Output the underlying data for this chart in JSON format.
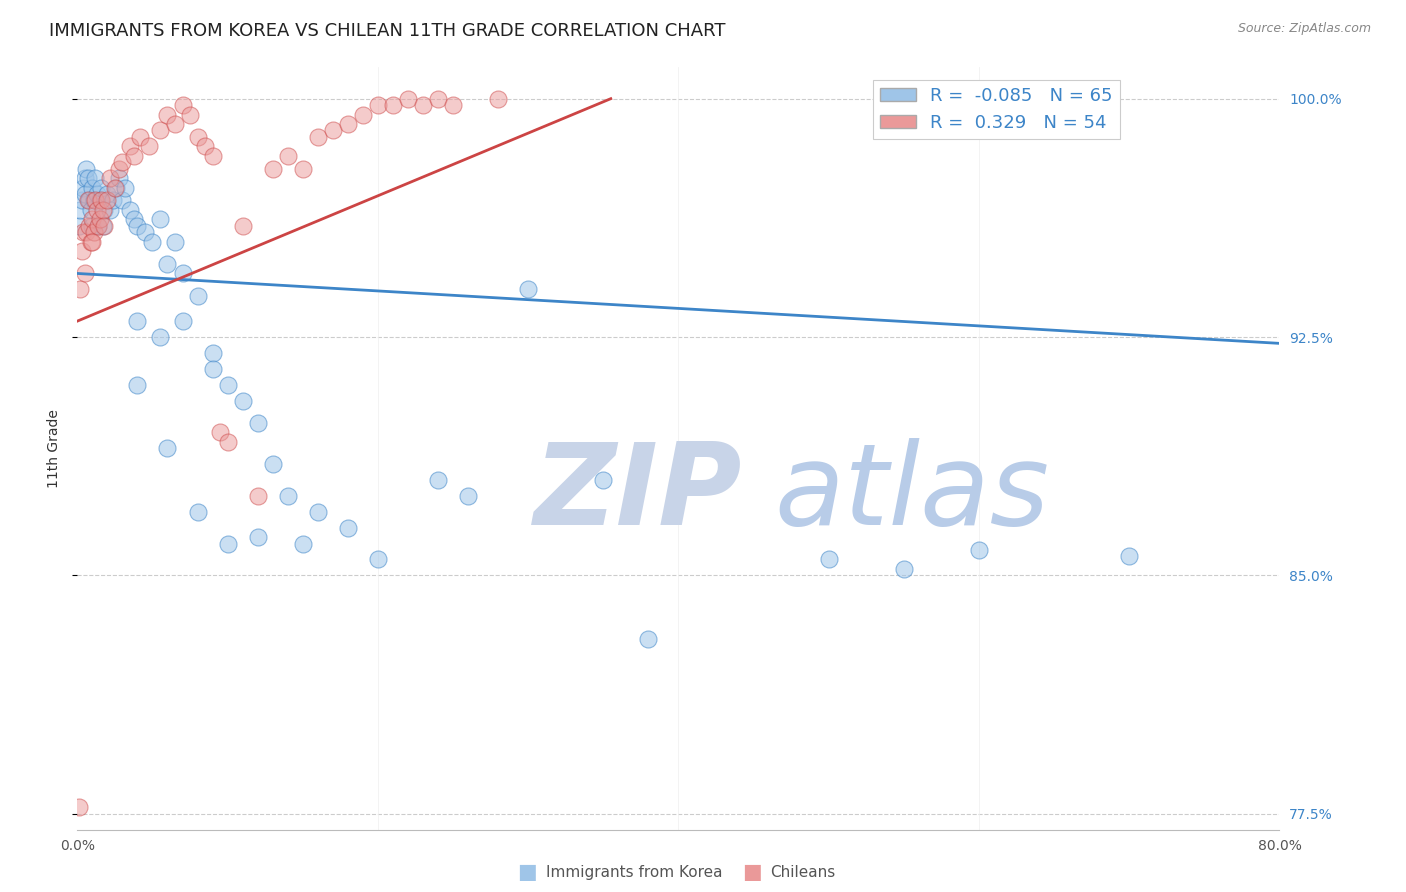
{
  "title": "IMMIGRANTS FROM KOREA VS CHILEAN 11TH GRADE CORRELATION CHART",
  "source": "Source: ZipAtlas.com",
  "ylabel": "11th Grade",
  "legend_label1": "Immigrants from Korea",
  "legend_label2": "Chileans",
  "R1": -0.085,
  "N1": 65,
  "R2": 0.329,
  "N2": 54,
  "xlim": [
    0.0,
    0.8
  ],
  "ylim": [
    0.77,
    1.01
  ],
  "yticks": [
    1.0,
    0.925,
    0.85,
    0.775
  ],
  "ytick_labels": [
    "100.0%",
    "92.5%",
    "85.0%",
    "77.5%"
  ],
  "xticks": [
    0.0,
    0.2,
    0.4,
    0.6,
    0.8
  ],
  "xtick_labels": [
    "0.0%",
    "",
    "",
    "",
    "80.0%"
  ],
  "color_blue": "#9fc5e8",
  "color_pink": "#ea9999",
  "color_blue_line": "#3d85c8",
  "color_pink_line": "#cc4444",
  "watermark_zip": "ZIP",
  "watermark_atlas": "atlas",
  "watermark_color_zip": "#c8d4e8",
  "watermark_color_atlas": "#b8cce8",
  "title_fontsize": 13,
  "axis_label_fontsize": 10,
  "tick_fontsize": 10,
  "blue_line_x": [
    0.0,
    0.8
  ],
  "blue_line_y": [
    0.945,
    0.923
  ],
  "pink_line_x": [
    0.0,
    0.355
  ],
  "pink_line_y": [
    0.93,
    1.0
  ],
  "blue_scatter_x": [
    0.001,
    0.002,
    0.003,
    0.004,
    0.005,
    0.005,
    0.006,
    0.007,
    0.008,
    0.009,
    0.01,
    0.01,
    0.011,
    0.012,
    0.013,
    0.014,
    0.015,
    0.016,
    0.017,
    0.018,
    0.02,
    0.022,
    0.024,
    0.026,
    0.028,
    0.03,
    0.032,
    0.035,
    0.038,
    0.04,
    0.045,
    0.05,
    0.055,
    0.06,
    0.065,
    0.07,
    0.08,
    0.09,
    0.1,
    0.11,
    0.12,
    0.13,
    0.14,
    0.16,
    0.18,
    0.2,
    0.24,
    0.26,
    0.3,
    0.35,
    0.04,
    0.055,
    0.07,
    0.09,
    0.04,
    0.06,
    0.08,
    0.1,
    0.12,
    0.15,
    0.5,
    0.55,
    0.6,
    0.7,
    0.38
  ],
  "blue_scatter_y": [
    0.96,
    0.965,
    0.968,
    0.972,
    0.97,
    0.975,
    0.978,
    0.975,
    0.968,
    0.965,
    0.972,
    0.96,
    0.968,
    0.975,
    0.97,
    0.96,
    0.968,
    0.972,
    0.96,
    0.965,
    0.97,
    0.965,
    0.968,
    0.972,
    0.975,
    0.968,
    0.972,
    0.965,
    0.962,
    0.96,
    0.958,
    0.955,
    0.962,
    0.948,
    0.955,
    0.945,
    0.938,
    0.92,
    0.91,
    0.905,
    0.898,
    0.885,
    0.875,
    0.87,
    0.865,
    0.855,
    0.88,
    0.875,
    0.94,
    0.88,
    0.93,
    0.925,
    0.93,
    0.915,
    0.91,
    0.89,
    0.87,
    0.86,
    0.862,
    0.86,
    0.855,
    0.852,
    0.858,
    0.856,
    0.83
  ],
  "pink_scatter_x": [
    0.001,
    0.002,
    0.003,
    0.004,
    0.005,
    0.006,
    0.007,
    0.008,
    0.009,
    0.01,
    0.011,
    0.012,
    0.013,
    0.014,
    0.015,
    0.016,
    0.017,
    0.018,
    0.02,
    0.022,
    0.025,
    0.028,
    0.03,
    0.035,
    0.038,
    0.042,
    0.048,
    0.055,
    0.06,
    0.065,
    0.07,
    0.075,
    0.08,
    0.085,
    0.09,
    0.095,
    0.1,
    0.11,
    0.12,
    0.13,
    0.14,
    0.15,
    0.16,
    0.17,
    0.18,
    0.19,
    0.2,
    0.21,
    0.22,
    0.23,
    0.24,
    0.25,
    0.28,
    0.01
  ],
  "pink_scatter_y": [
    0.777,
    0.94,
    0.952,
    0.958,
    0.945,
    0.958,
    0.968,
    0.96,
    0.955,
    0.962,
    0.958,
    0.968,
    0.965,
    0.96,
    0.962,
    0.968,
    0.965,
    0.96,
    0.968,
    0.975,
    0.972,
    0.978,
    0.98,
    0.985,
    0.982,
    0.988,
    0.985,
    0.99,
    0.995,
    0.992,
    0.998,
    0.995,
    0.988,
    0.985,
    0.982,
    0.895,
    0.892,
    0.96,
    0.875,
    0.978,
    0.982,
    0.978,
    0.988,
    0.99,
    0.992,
    0.995,
    0.998,
    0.998,
    1.0,
    0.998,
    1.0,
    0.998,
    1.0,
    0.955
  ]
}
